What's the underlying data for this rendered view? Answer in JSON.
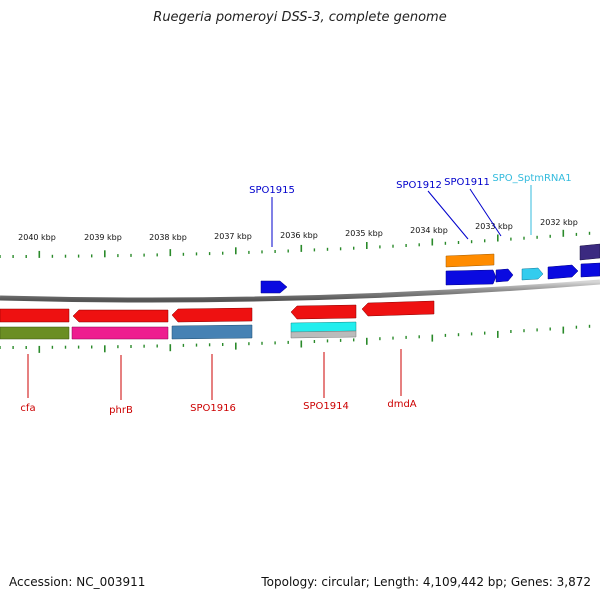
{
  "title": "Ruegeria pomeroyi DSS-3, complete genome",
  "footer": {
    "accession": "Accession: NC_003911",
    "summary": "Topology: circular; Length: 4,109,442 bp; Genes: 3,872"
  },
  "colors": {
    "backbone": "#8a8a8a",
    "tick": "#2a8a2a",
    "forward_label": "#0000cc",
    "reverse_label": "#cc0000",
    "rna_label": "#33bbdd"
  },
  "scale_ticks": [
    "2040 kbp",
    "2039 kbp",
    "2038 kbp",
    "2037 kbp",
    "2036 kbp",
    "2035 kbp",
    "2034 kbp",
    "2033 kbp",
    "2032 kbp"
  ],
  "gene_labels": {
    "forward": [
      "SPO1915",
      "SPO1912",
      "SPO1911",
      "SPO_SptmRNA1"
    ],
    "reverse": [
      "cfa",
      "phrB",
      "SPO1916",
      "SPO1914",
      "dmdA"
    ]
  }
}
